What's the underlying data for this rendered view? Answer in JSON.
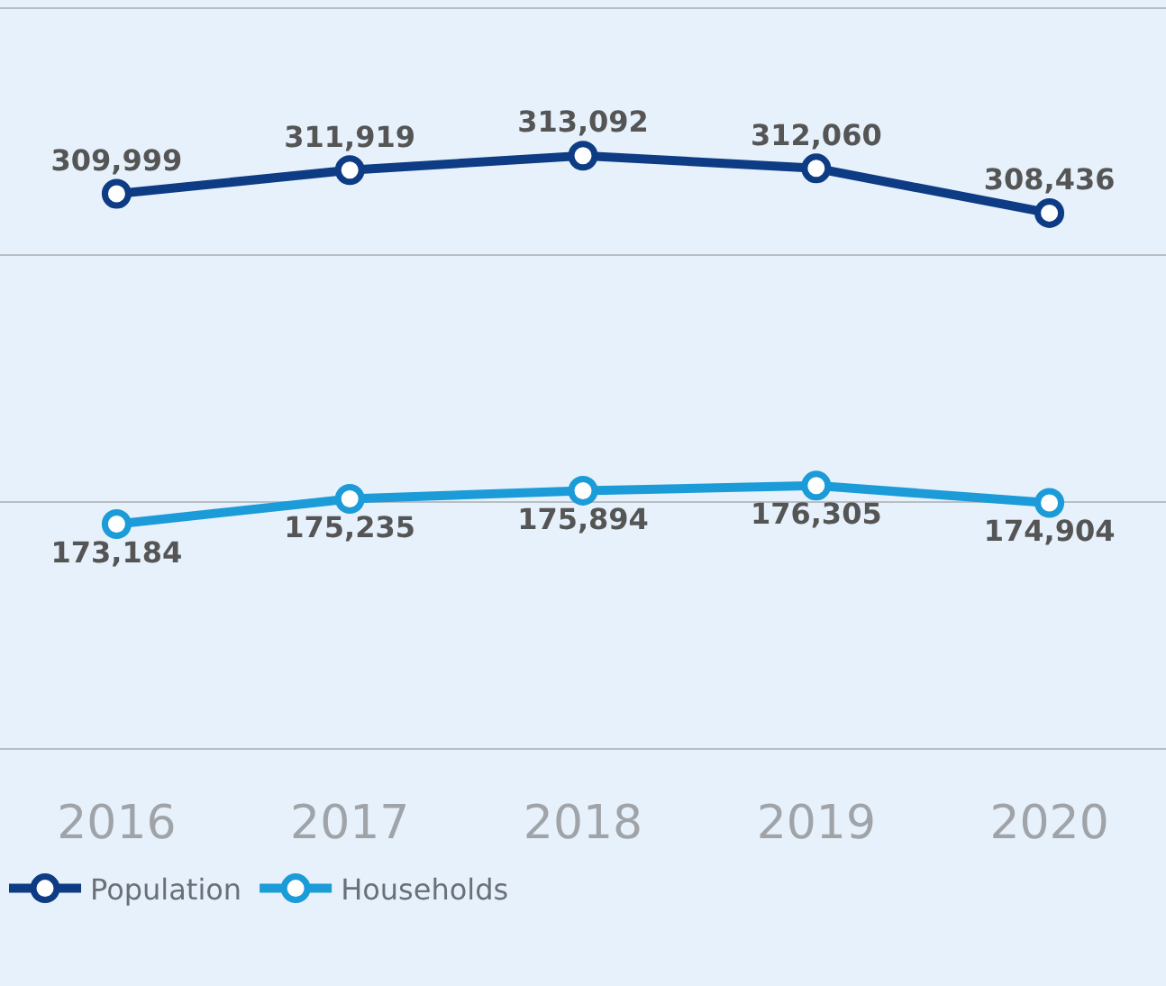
{
  "chart_data": {
    "type": "line",
    "categories": [
      "2016",
      "2017",
      "2018",
      "2019",
      "2020"
    ],
    "series": [
      {
        "name": "Population",
        "color": "#0d3b84",
        "values": [
          309999,
          311919,
          313092,
          312060,
          308436
        ],
        "value_labels": [
          "309,999",
          "311,919",
          "313,092",
          "312,060",
          "308,436"
        ]
      },
      {
        "name": "Households",
        "color": "#1b9bd7",
        "axis": "y2",
        "values": [
          173184,
          175235,
          175894,
          176305,
          174904
        ],
        "value_labels": [
          "173,184",
          "175,235",
          "175,894",
          "176,305",
          "174,904"
        ]
      }
    ],
    "ylim": [
      265000,
      325000
    ],
    "y2lim": [
      155000,
      215000
    ],
    "yticks": [
      {
        "value": 285000,
        "label": null
      },
      {
        "value": 305000,
        "label": null
      }
    ],
    "grid": "y",
    "tick_labels": "x",
    "marker": "circle",
    "line_style": "solid",
    "legend": "bottom left"
  }
}
